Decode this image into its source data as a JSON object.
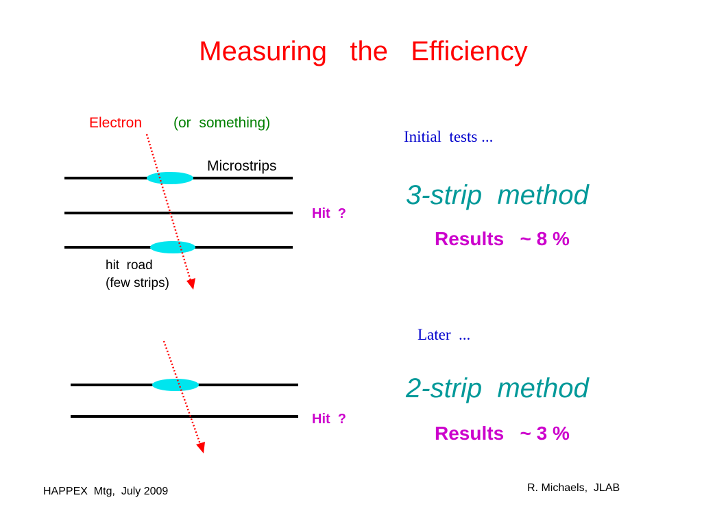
{
  "slide": {
    "title": "Measuring   the   Efficiency",
    "footer_left": "HAPPEX  Mtg,  July 2009",
    "footer_right": "R. Michaels,  JLAB"
  },
  "diagram_top": {
    "electron_label": "Electron",
    "or_label": "(or  something)",
    "microstrips_label": "Microstrips",
    "hit_label": "Hit  ?",
    "hit_road_line1": "hit  road",
    "hit_road_line2": "(few strips)"
  },
  "diagram_bottom": {
    "hit_label": "Hit  ?"
  },
  "right_panel": {
    "initial": "Initial  tests ...",
    "method1": "3-strip  method",
    "results1_label": "Results",
    "results1_value": "~ 8 %",
    "later": "Later  ...",
    "method2": "2-strip  method",
    "results2_label": "Results",
    "results2_value": "~ 3 %"
  },
  "colors": {
    "title": "#ff0000",
    "electron": "#ff0000",
    "or_something": "#008000",
    "hit": "#cc00cc",
    "tests": "#0000cc",
    "method": "#009999",
    "results": "#cc00cc",
    "ellipse": "#00e5ee",
    "track": "#ff0000",
    "strip_line": "#000000"
  }
}
